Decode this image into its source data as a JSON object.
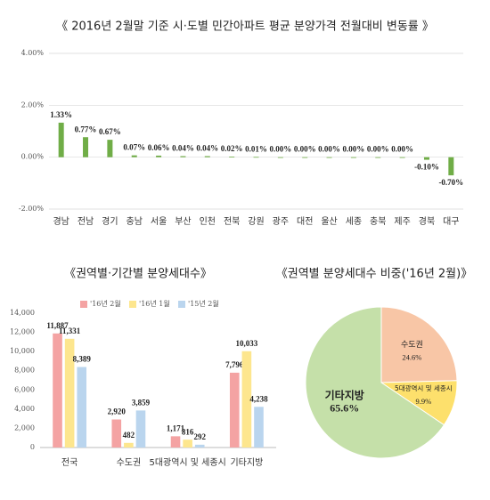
{
  "chart_data": [
    {
      "type": "bar",
      "title": "《 2016년 2월말 기준 시·도별 민간아파트 평균 분양가격 전월대비 변동률 》",
      "categories": [
        "경남",
        "전남",
        "경기",
        "충남",
        "서울",
        "부산",
        "인천",
        "전북",
        "강원",
        "광주",
        "대전",
        "울산",
        "세종",
        "충북",
        "제주",
        "경북",
        "대구"
      ],
      "values": [
        1.33,
        0.77,
        0.67,
        0.07,
        0.06,
        0.04,
        0.04,
        0.02,
        0.01,
        0,
        0,
        0,
        0,
        0,
        0,
        -0.1,
        -0.7
      ],
      "value_labels": [
        "1.33%",
        "0.77%",
        "0.67%",
        "0.07%",
        "0.06%",
        "0.04%",
        "0.04%",
        "0.02%",
        "0.01%",
        "0.00%",
        "0.00%",
        "0.00%",
        "0.00%",
        "0.00%",
        "0.00%",
        "-0.10%",
        "-0.70%"
      ],
      "color": "#70ad47",
      "ylim": [
        -2,
        4
      ],
      "yticks": [
        {
          "value": -2,
          "label": "-2.00%"
        },
        {
          "value": 0,
          "label": "0.00%"
        },
        {
          "value": 2,
          "label": "2.00%"
        },
        {
          "value": 4,
          "label": "4.00%"
        }
      ],
      "grid": true
    },
    {
      "type": "bar",
      "title": "《권역별·기간별 분양세대수》",
      "categories": [
        "전국",
        "수도권",
        "5대광역시 및 세종시",
        "기타지방"
      ],
      "series": [
        {
          "name": "'16년 2월",
          "color": "#f4a3a3",
          "values": [
            11887,
            2920,
            1171,
            7796
          ],
          "value_labels": [
            "11,887",
            "2,920",
            "1,171",
            "7,796"
          ]
        },
        {
          "name": "'16년 1월",
          "color": "#fde68e",
          "values": [
            11331,
            482,
            816,
            10033
          ],
          "value_labels": [
            "11,331",
            "482",
            "816",
            "10,033"
          ]
        },
        {
          "name": "'15년 2월",
          "color": "#bad5ee",
          "values": [
            8389,
            3859,
            292,
            4238
          ],
          "value_labels": [
            "8,389",
            "3,859",
            "292",
            "4,238"
          ]
        }
      ],
      "ylim": [
        0,
        14000
      ],
      "yticks": [
        0,
        {
          "value": 2000,
          "label": "2,000"
        },
        {
          "value": 4000,
          "label": "4,000"
        },
        {
          "value": 6000,
          "label": "6,000"
        },
        {
          "value": 8000,
          "label": "8,000"
        },
        {
          "value": 10000,
          "label": "10,000"
        },
        {
          "value": 12000,
          "label": "12,000"
        },
        {
          "value": 14000,
          "label": "14,000"
        }
      ],
      "legend": "top"
    },
    {
      "type": "pie",
      "title": "《권역별 분양세대수 비중('16년 2월)》",
      "categories": [
        "수도권",
        "5대광역시 및 세종시",
        "기타지방"
      ],
      "values": [
        24.6,
        9.9,
        65.6
      ],
      "value_labels": [
        "24.6%",
        "9.9%",
        "65.6%"
      ],
      "colors": [
        "#f8c6a6",
        "#fde06c",
        "#c5e0a9"
      ]
    }
  ]
}
